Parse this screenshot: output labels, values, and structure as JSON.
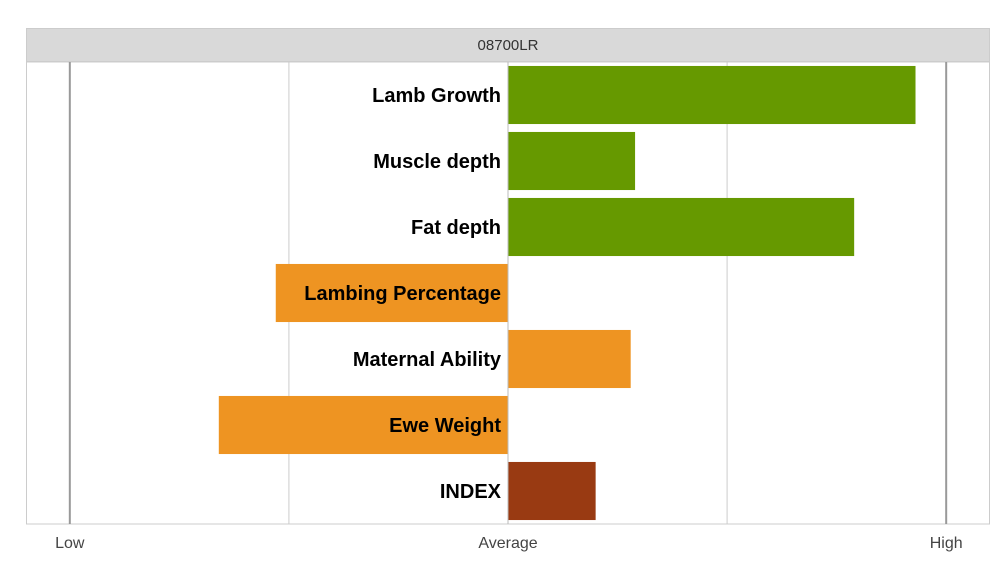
{
  "chart_data": {
    "type": "bar",
    "orientation": "horizontal",
    "title": "08700LR",
    "categories": [
      "Lamb Growth",
      "Muscle depth",
      "Fat depth",
      "Lambing Percentage",
      "Maternal Ability",
      "Ewe Weight",
      "INDEX"
    ],
    "values": [
      0.93,
      0.29,
      0.79,
      -0.53,
      0.28,
      -0.66,
      0.2
    ],
    "bar_colors": [
      "#669900",
      "#669900",
      "#669900",
      "#ee9422",
      "#ee9422",
      "#ee9422",
      "#993a12"
    ],
    "x_ticks": [
      {
        "value": -1,
        "label": "Low"
      },
      {
        "value": 0,
        "label": "Average"
      },
      {
        "value": 1,
        "label": "High"
      }
    ],
    "xlim": [
      -1.1,
      1.1
    ],
    "grid": true
  }
}
